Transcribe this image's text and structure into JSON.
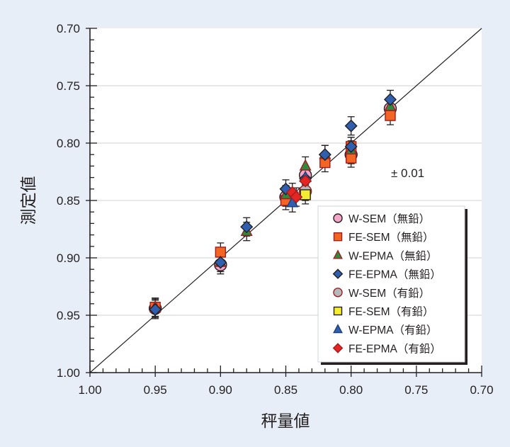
{
  "chart_data": {
    "type": "scatter",
    "xlabel": "秤量値",
    "ylabel": "測定値",
    "xlim": [
      1.0,
      0.7
    ],
    "ylim": [
      1.0,
      0.7
    ],
    "x_reversed": true,
    "y_reversed": true,
    "x_ticks": [
      "1.00",
      "0.95",
      "0.90",
      "0.85",
      "0.80",
      "0.75",
      "0.70"
    ],
    "y_ticks": [
      "0.70",
      "0.75",
      "0.80",
      "0.85",
      "0.90",
      "0.95",
      "1.00"
    ],
    "grid": "horizontal",
    "reference_line": "y = x",
    "annotation": "± 0.01",
    "legend_position": "bottom-right",
    "series": [
      {
        "name": "W-SEM（無鉛）",
        "marker": "circle",
        "fill": "#f4a6c8",
        "stroke": "#231f20",
        "points": [
          [
            0.95,
            0.944
          ],
          [
            0.9,
            0.906
          ],
          [
            0.85,
            0.847
          ],
          [
            0.835,
            0.828
          ],
          [
            0.8,
            0.81
          ],
          [
            0.77,
            0.77
          ]
        ]
      },
      {
        "name": "FE-SEM（無鉛）",
        "marker": "square",
        "fill": "#f26522",
        "stroke": "#a01e22",
        "points": [
          [
            0.95,
            0.943
          ],
          [
            0.9,
            0.895
          ],
          [
            0.85,
            0.85
          ],
          [
            0.82,
            0.817
          ],
          [
            0.8,
            0.813
          ],
          [
            0.8,
            0.803
          ],
          [
            0.77,
            0.776
          ]
        ]
      },
      {
        "name": "W-EPMA（無鉛）",
        "marker": "triangle",
        "fill": "#2e8b3e",
        "stroke": "#a01e22",
        "points": [
          [
            0.95,
            0.943
          ],
          [
            0.9,
            0.904
          ],
          [
            0.88,
            0.877
          ],
          [
            0.85,
            0.845
          ],
          [
            0.835,
            0.82
          ],
          [
            0.82,
            0.81
          ],
          [
            0.8,
            0.806
          ],
          [
            0.77,
            0.768
          ]
        ]
      },
      {
        "name": "FE-EPMA（無鉛）",
        "marker": "diamond",
        "fill": "#2f5fae",
        "stroke": "#231f20",
        "points": [
          [
            0.95,
            0.945
          ],
          [
            0.9,
            0.904
          ],
          [
            0.88,
            0.873
          ],
          [
            0.85,
            0.84
          ],
          [
            0.835,
            0.831
          ],
          [
            0.82,
            0.81
          ],
          [
            0.8,
            0.785
          ],
          [
            0.8,
            0.803
          ],
          [
            0.77,
            0.762
          ]
        ]
      },
      {
        "name": "W-SEM（有鉛）",
        "marker": "circle",
        "fill": "#b7b8ba",
        "stroke": "#a01e22",
        "points": [
          [
            0.835,
            0.842
          ]
        ]
      },
      {
        "name": "FE-SEM（有鉛）",
        "marker": "square",
        "fill": "#f5ee30",
        "stroke": "#231f20",
        "points": [
          [
            0.835,
            0.845
          ]
        ]
      },
      {
        "name": "W-EPMA（有鉛）",
        "marker": "triangle",
        "fill": "#2f5fae",
        "stroke": "#1d3f7a",
        "points": [
          [
            0.845,
            0.852
          ],
          [
            0.835,
            0.83
          ]
        ]
      },
      {
        "name": "FE-EPMA（有鉛）",
        "marker": "diamond",
        "fill": "#e52521",
        "stroke": "#a01e22",
        "points": [
          [
            0.845,
            0.843
          ],
          [
            0.842,
            0.847
          ],
          [
            0.835,
            0.833
          ]
        ]
      }
    ],
    "error_bar": 0.01
  }
}
